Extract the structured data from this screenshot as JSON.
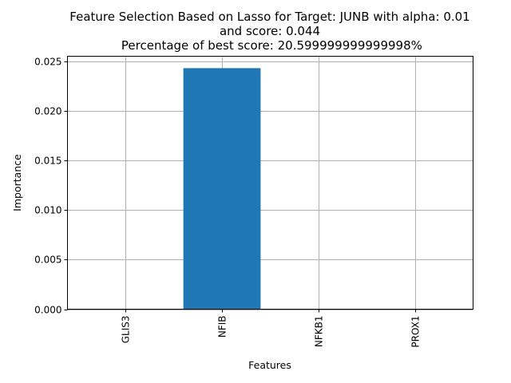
{
  "chart_data": {
    "type": "bar",
    "title_lines": [
      "Feature Selection Based on Lasso for Target: JUNB with alpha: 0.01",
      "and score: 0.044",
      " Percentage of best score: 20.599999999999998%"
    ],
    "xlabel": "Features",
    "ylabel": "Importance",
    "categories": [
      "GLIS3",
      "NFIB",
      "NFKB1",
      "PROX1"
    ],
    "values": [
      0.0,
      0.0243,
      0.0,
      0.0
    ],
    "ylim": [
      0,
      0.0255
    ],
    "yticks": [
      0.0,
      0.005,
      0.01,
      0.015,
      0.02,
      0.025
    ],
    "ytick_labels": [
      "0.000",
      "0.005",
      "0.010",
      "0.015",
      "0.020",
      "0.025"
    ],
    "grid": true,
    "bar_color": "#1f77b4"
  }
}
